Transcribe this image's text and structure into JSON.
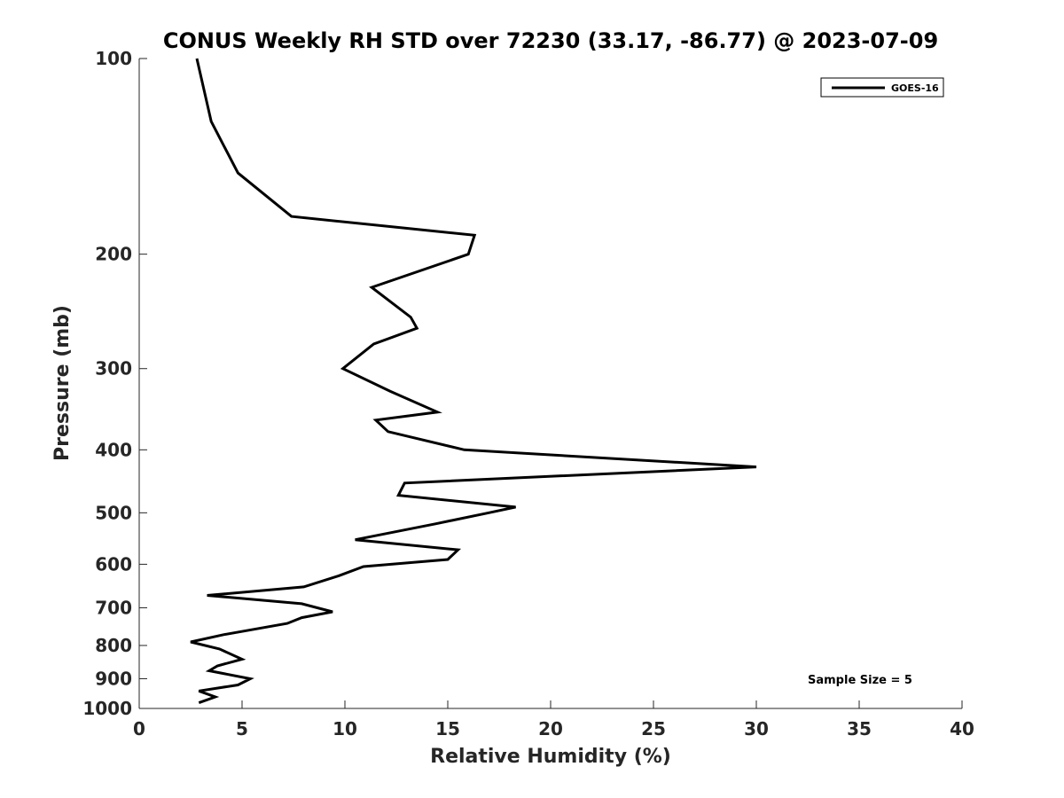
{
  "chart_data": {
    "type": "line",
    "title": "CONUS Weekly RH STD over 72230 (33.17, -86.77) @ 2023-07-09",
    "xlabel": "Relative Humidity (%)",
    "ylabel": "Pressure (mb)",
    "xlim": [
      0,
      40
    ],
    "ylim": [
      100,
      1000
    ],
    "y_scale": "log",
    "y_reversed": true,
    "x_ticks": [
      0,
      5,
      10,
      15,
      20,
      25,
      30,
      35,
      40
    ],
    "y_ticks": [
      100,
      200,
      300,
      400,
      500,
      600,
      700,
      800,
      900,
      1000
    ],
    "grid": false,
    "legend": {
      "position": "top-right",
      "entries": [
        "GOES-16"
      ]
    },
    "annotations": [
      "Sample Size = 5"
    ],
    "series": [
      {
        "name": "GOES-16",
        "color": "#000000",
        "points": [
          [
            2.8,
            100
          ],
          [
            3.5,
            125
          ],
          [
            4.8,
            150
          ],
          [
            7.4,
            175
          ],
          [
            16.3,
            187
          ],
          [
            16.0,
            200
          ],
          [
            11.3,
            225
          ],
          [
            13.2,
            250
          ],
          [
            13.5,
            260
          ],
          [
            11.4,
            275
          ],
          [
            9.9,
            300
          ],
          [
            12.2,
            325
          ],
          [
            14.5,
            350
          ],
          [
            11.5,
            360
          ],
          [
            12.1,
            375
          ],
          [
            15.8,
            400
          ],
          [
            30.0,
            425
          ],
          [
            12.9,
            450
          ],
          [
            12.6,
            470
          ],
          [
            18.3,
            490
          ],
          [
            17.0,
            500
          ],
          [
            14.4,
            520
          ],
          [
            10.5,
            550
          ],
          [
            15.5,
            570
          ],
          [
            15.0,
            590
          ],
          [
            10.9,
            605
          ],
          [
            9.7,
            625
          ],
          [
            8.0,
            650
          ],
          [
            3.3,
            670
          ],
          [
            7.9,
            690
          ],
          [
            9.4,
            710
          ],
          [
            7.9,
            725
          ],
          [
            7.2,
            740
          ],
          [
            4.1,
            770
          ],
          [
            2.5,
            790
          ],
          [
            3.9,
            810
          ],
          [
            5.0,
            840
          ],
          [
            3.8,
            860
          ],
          [
            3.4,
            875
          ],
          [
            5.4,
            900
          ],
          [
            4.8,
            920
          ],
          [
            2.9,
            940
          ],
          [
            3.7,
            960
          ],
          [
            2.9,
            980
          ]
        ]
      }
    ]
  }
}
